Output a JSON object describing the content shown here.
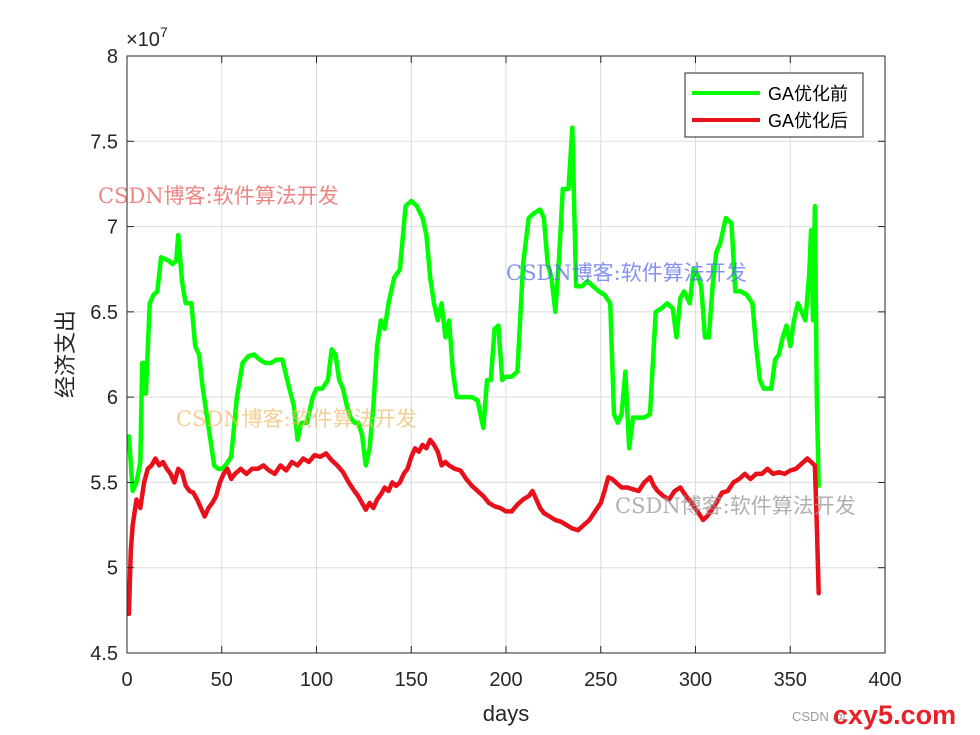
{
  "chart_data": {
    "type": "line",
    "xlabel": "days",
    "ylabel": "经济支出",
    "y_exponent_label": "×10",
    "y_exponent_power": "7",
    "xlim": [
      0,
      400
    ],
    "ylim": [
      4.5,
      8
    ],
    "x_ticks": [
      "0",
      "50",
      "100",
      "150",
      "200",
      "250",
      "300",
      "350",
      "400"
    ],
    "y_ticks": [
      "4.5",
      "5",
      "5.5",
      "6",
      "6.5",
      "7",
      "7.5",
      "8"
    ],
    "grid": true,
    "legend_position": "top-right",
    "series": [
      {
        "name": "GA优化前",
        "color": "#00ff00",
        "points": [
          [
            1,
            5.77
          ],
          [
            3,
            5.45
          ],
          [
            5,
            5.5
          ],
          [
            7,
            5.62
          ],
          [
            8,
            6.2
          ],
          [
            9,
            6.2
          ],
          [
            10,
            6.02
          ],
          [
            12,
            6.55
          ],
          [
            14,
            6.6
          ],
          [
            16,
            6.62
          ],
          [
            18,
            6.82
          ],
          [
            22,
            6.8
          ],
          [
            24,
            6.78
          ],
          [
            26,
            6.8
          ],
          [
            27,
            6.95
          ],
          [
            29,
            6.68
          ],
          [
            31,
            6.55
          ],
          [
            34,
            6.55
          ],
          [
            36,
            6.3
          ],
          [
            38,
            6.25
          ],
          [
            40,
            6.05
          ],
          [
            42,
            5.9
          ],
          [
            44,
            5.75
          ],
          [
            46,
            5.6
          ],
          [
            48,
            5.58
          ],
          [
            50,
            5.58
          ],
          [
            52,
            5.6
          ],
          [
            55,
            5.65
          ],
          [
            58,
            6.0
          ],
          [
            61,
            6.2
          ],
          [
            64,
            6.24
          ],
          [
            67,
            6.25
          ],
          [
            70,
            6.22
          ],
          [
            73,
            6.2
          ],
          [
            76,
            6.2
          ],
          [
            79,
            6.22
          ],
          [
            82,
            6.22
          ],
          [
            85,
            6.08
          ],
          [
            88,
            5.95
          ],
          [
            90,
            5.75
          ],
          [
            92,
            5.85
          ],
          [
            95,
            5.85
          ],
          [
            98,
            6.0
          ],
          [
            100,
            6.05
          ],
          [
            103,
            6.05
          ],
          [
            106,
            6.1
          ],
          [
            108,
            6.28
          ],
          [
            110,
            6.25
          ],
          [
            112,
            6.1
          ],
          [
            114,
            6.05
          ],
          [
            116,
            5.95
          ],
          [
            118,
            5.88
          ],
          [
            120,
            5.85
          ],
          [
            122,
            5.85
          ],
          [
            124,
            5.78
          ],
          [
            126,
            5.6
          ],
          [
            128,
            5.7
          ],
          [
            130,
            5.95
          ],
          [
            132,
            6.3
          ],
          [
            134,
            6.45
          ],
          [
            136,
            6.4
          ],
          [
            138,
            6.55
          ],
          [
            141,
            6.7
          ],
          [
            144,
            6.75
          ],
          [
            147,
            7.12
          ],
          [
            150,
            7.15
          ],
          [
            153,
            7.12
          ],
          [
            156,
            7.05
          ],
          [
            158,
            6.95
          ],
          [
            160,
            6.7
          ],
          [
            162,
            6.55
          ],
          [
            164,
            6.45
          ],
          [
            166,
            6.55
          ],
          [
            168,
            6.35
          ],
          [
            170,
            6.45
          ],
          [
            172,
            6.15
          ],
          [
            174,
            6.0
          ],
          [
            178,
            6.0
          ],
          [
            182,
            6.0
          ],
          [
            185,
            5.98
          ],
          [
            188,
            5.82
          ],
          [
            190,
            6.1
          ],
          [
            192,
            6.1
          ],
          [
            194,
            6.4
          ],
          [
            196,
            6.42
          ],
          [
            198,
            6.1
          ],
          [
            200,
            6.12
          ],
          [
            203,
            6.12
          ],
          [
            206,
            6.15
          ],
          [
            209,
            6.78
          ],
          [
            212,
            7.05
          ],
          [
            215,
            7.08
          ],
          [
            218,
            7.1
          ],
          [
            220,
            7.05
          ],
          [
            222,
            6.78
          ],
          [
            224,
            6.7
          ],
          [
            226,
            6.5
          ],
          [
            228,
            6.82
          ],
          [
            230,
            7.22
          ],
          [
            233,
            7.22
          ],
          [
            235,
            7.58
          ],
          [
            237,
            6.65
          ],
          [
            240,
            6.65
          ],
          [
            243,
            6.68
          ],
          [
            246,
            6.65
          ],
          [
            249,
            6.62
          ],
          [
            252,
            6.6
          ],
          [
            255,
            6.55
          ],
          [
            257,
            5.9
          ],
          [
            259,
            5.85
          ],
          [
            261,
            5.9
          ],
          [
            263,
            6.15
          ],
          [
            265,
            5.7
          ],
          [
            267,
            5.88
          ],
          [
            270,
            5.88
          ],
          [
            273,
            5.88
          ],
          [
            276,
            5.9
          ],
          [
            279,
            6.5
          ],
          [
            282,
            6.52
          ],
          [
            285,
            6.55
          ],
          [
            288,
            6.52
          ],
          [
            290,
            6.35
          ],
          [
            292,
            6.58
          ],
          [
            294,
            6.62
          ],
          [
            297,
            6.55
          ],
          [
            299,
            6.75
          ],
          [
            301,
            6.72
          ],
          [
            303,
            6.65
          ],
          [
            305,
            6.35
          ],
          [
            307,
            6.35
          ],
          [
            309,
            6.65
          ],
          [
            311,
            6.85
          ],
          [
            313,
            6.9
          ],
          [
            316,
            7.05
          ],
          [
            319,
            7.02
          ],
          [
            321,
            6.62
          ],
          [
            324,
            6.62
          ],
          [
            327,
            6.6
          ],
          [
            330,
            6.55
          ],
          [
            332,
            6.3
          ],
          [
            334,
            6.1
          ],
          [
            336,
            6.05
          ],
          [
            340,
            6.05
          ],
          [
            342,
            6.22
          ],
          [
            344,
            6.25
          ],
          [
            346,
            6.35
          ],
          [
            348,
            6.42
          ],
          [
            350,
            6.3
          ],
          [
            352,
            6.45
          ],
          [
            354,
            6.55
          ],
          [
            356,
            6.5
          ],
          [
            358,
            6.45
          ],
          [
            360,
            6.72
          ],
          [
            361,
            6.98
          ],
          [
            362,
            6.45
          ],
          [
            363,
            7.12
          ],
          [
            364,
            6.0
          ],
          [
            365,
            5.48
          ]
        ]
      },
      {
        "name": "GA优化后",
        "color": "#e8101a",
        "points": [
          [
            1,
            4.73
          ],
          [
            2,
            5.1
          ],
          [
            3,
            5.25
          ],
          [
            5,
            5.4
          ],
          [
            7,
            5.35
          ],
          [
            9,
            5.5
          ],
          [
            11,
            5.58
          ],
          [
            13,
            5.6
          ],
          [
            15,
            5.64
          ],
          [
            17,
            5.6
          ],
          [
            19,
            5.62
          ],
          [
            21,
            5.58
          ],
          [
            23,
            5.55
          ],
          [
            25,
            5.5
          ],
          [
            27,
            5.58
          ],
          [
            29,
            5.56
          ],
          [
            31,
            5.48
          ],
          [
            33,
            5.45
          ],
          [
            35,
            5.44
          ],
          [
            37,
            5.4
          ],
          [
            39,
            5.35
          ],
          [
            41,
            5.3
          ],
          [
            43,
            5.35
          ],
          [
            45,
            5.38
          ],
          [
            47,
            5.42
          ],
          [
            49,
            5.5
          ],
          [
            51,
            5.55
          ],
          [
            53,
            5.58
          ],
          [
            55,
            5.52
          ],
          [
            57,
            5.55
          ],
          [
            60,
            5.58
          ],
          [
            63,
            5.55
          ],
          [
            66,
            5.58
          ],
          [
            69,
            5.58
          ],
          [
            72,
            5.6
          ],
          [
            75,
            5.57
          ],
          [
            78,
            5.55
          ],
          [
            81,
            5.6
          ],
          [
            84,
            5.57
          ],
          [
            87,
            5.62
          ],
          [
            90,
            5.6
          ],
          [
            93,
            5.64
          ],
          [
            96,
            5.62
          ],
          [
            99,
            5.66
          ],
          [
            102,
            5.65
          ],
          [
            105,
            5.67
          ],
          [
            108,
            5.63
          ],
          [
            111,
            5.6
          ],
          [
            114,
            5.56
          ],
          [
            117,
            5.5
          ],
          [
            120,
            5.45
          ],
          [
            122,
            5.42
          ],
          [
            124,
            5.38
          ],
          [
            126,
            5.34
          ],
          [
            128,
            5.38
          ],
          [
            130,
            5.35
          ],
          [
            132,
            5.4
          ],
          [
            134,
            5.43
          ],
          [
            136,
            5.47
          ],
          [
            138,
            5.45
          ],
          [
            140,
            5.5
          ],
          [
            142,
            5.48
          ],
          [
            144,
            5.5
          ],
          [
            146,
            5.55
          ],
          [
            148,
            5.58
          ],
          [
            150,
            5.65
          ],
          [
            152,
            5.7
          ],
          [
            154,
            5.68
          ],
          [
            156,
            5.72
          ],
          [
            158,
            5.7
          ],
          [
            160,
            5.75
          ],
          [
            162,
            5.72
          ],
          [
            164,
            5.68
          ],
          [
            166,
            5.6
          ],
          [
            168,
            5.62
          ],
          [
            170,
            5.6
          ],
          [
            173,
            5.58
          ],
          [
            176,
            5.57
          ],
          [
            179,
            5.52
          ],
          [
            182,
            5.48
          ],
          [
            185,
            5.45
          ],
          [
            188,
            5.42
          ],
          [
            191,
            5.38
          ],
          [
            194,
            5.36
          ],
          [
            197,
            5.35
          ],
          [
            200,
            5.33
          ],
          [
            203,
            5.33
          ],
          [
            206,
            5.37
          ],
          [
            209,
            5.4
          ],
          [
            212,
            5.42
          ],
          [
            214,
            5.45
          ],
          [
            216,
            5.4
          ],
          [
            218,
            5.35
          ],
          [
            220,
            5.32
          ],
          [
            223,
            5.3
          ],
          [
            226,
            5.28
          ],
          [
            229,
            5.27
          ],
          [
            232,
            5.25
          ],
          [
            235,
            5.23
          ],
          [
            238,
            5.22
          ],
          [
            241,
            5.25
          ],
          [
            244,
            5.28
          ],
          [
            247,
            5.33
          ],
          [
            250,
            5.38
          ],
          [
            252,
            5.45
          ],
          [
            254,
            5.53
          ],
          [
            256,
            5.52
          ],
          [
            258,
            5.5
          ],
          [
            261,
            5.47
          ],
          [
            264,
            5.47
          ],
          [
            267,
            5.46
          ],
          [
            270,
            5.45
          ],
          [
            273,
            5.5
          ],
          [
            276,
            5.53
          ],
          [
            278,
            5.48
          ],
          [
            280,
            5.45
          ],
          [
            283,
            5.42
          ],
          [
            286,
            5.4
          ],
          [
            289,
            5.45
          ],
          [
            292,
            5.47
          ],
          [
            295,
            5.42
          ],
          [
            298,
            5.38
          ],
          [
            301,
            5.33
          ],
          [
            304,
            5.28
          ],
          [
            306,
            5.3
          ],
          [
            308,
            5.33
          ],
          [
            311,
            5.38
          ],
          [
            314,
            5.44
          ],
          [
            317,
            5.45
          ],
          [
            320,
            5.5
          ],
          [
            323,
            5.52
          ],
          [
            326,
            5.55
          ],
          [
            329,
            5.52
          ],
          [
            332,
            5.55
          ],
          [
            335,
            5.55
          ],
          [
            338,
            5.58
          ],
          [
            341,
            5.55
          ],
          [
            344,
            5.56
          ],
          [
            347,
            5.55
          ],
          [
            350,
            5.57
          ],
          [
            353,
            5.58
          ],
          [
            355,
            5.6
          ],
          [
            357,
            5.62
          ],
          [
            359,
            5.64
          ],
          [
            361,
            5.62
          ],
          [
            363,
            5.6
          ],
          [
            364,
            5.25
          ],
          [
            365,
            4.85
          ]
        ]
      }
    ]
  },
  "watermarks": [
    "CSDN博客:软件算法开发",
    "CSDN博客:软件算法开发",
    "CSDN博客:软件算法开发",
    "CSDN博客:软件算法开发"
  ],
  "footer": {
    "left_text": "CSDN @",
    "logo_text": "cxy5.com"
  }
}
